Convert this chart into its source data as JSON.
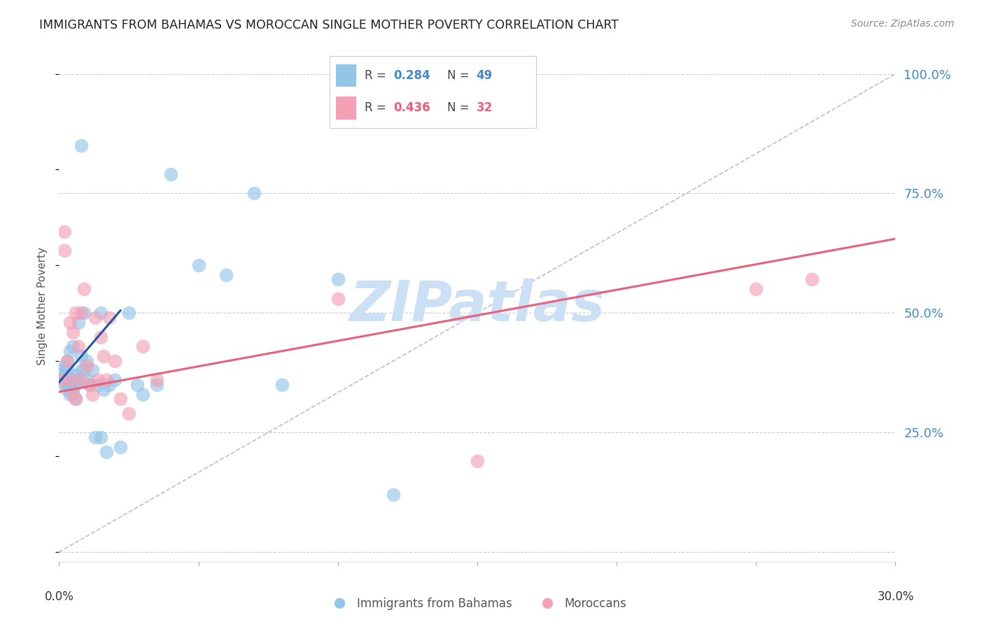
{
  "title": "IMMIGRANTS FROM BAHAMAS VS MOROCCAN SINGLE MOTHER POVERTY CORRELATION CHART",
  "source": "Source: ZipAtlas.com",
  "ylabel": "Single Mother Poverty",
  "xlim": [
    0.0,
    0.3
  ],
  "ylim": [
    -0.02,
    1.05
  ],
  "yticks": [
    0.0,
    0.25,
    0.5,
    0.75,
    1.0
  ],
  "ytick_labels": [
    "",
    "25.0%",
    "50.0%",
    "75.0%",
    "100.0%"
  ],
  "label1": "Immigrants from Bahamas",
  "label2": "Moroccans",
  "blue_color": "#92c5e8",
  "pink_color": "#f4a0b5",
  "blue_line_color": "#2255aa",
  "pink_line_color": "#e8607a",
  "axis_label_color": "#4488cc",
  "title_color": "#222222",
  "grid_color": "#cccccc",
  "watermark_color": "#cce0f5",
  "blue_x": [
    0.001,
    0.001,
    0.002,
    0.002,
    0.002,
    0.003,
    0.003,
    0.003,
    0.003,
    0.004,
    0.004,
    0.004,
    0.005,
    0.005,
    0.005,
    0.006,
    0.006,
    0.006,
    0.007,
    0.007,
    0.008,
    0.008,
    0.009,
    0.009,
    0.01,
    0.01,
    0.011,
    0.012,
    0.013,
    0.014,
    0.015,
    0.016,
    0.017,
    0.018,
    0.02,
    0.022,
    0.025,
    0.028,
    0.03,
    0.035,
    0.04,
    0.05,
    0.06,
    0.07,
    0.08,
    0.1,
    0.12,
    0.015,
    0.008
  ],
  "blue_y": [
    0.38,
    0.36,
    0.37,
    0.35,
    0.39,
    0.34,
    0.36,
    0.38,
    0.4,
    0.33,
    0.35,
    0.42,
    0.34,
    0.36,
    0.43,
    0.32,
    0.35,
    0.37,
    0.36,
    0.48,
    0.38,
    0.41,
    0.38,
    0.5,
    0.36,
    0.4,
    0.35,
    0.38,
    0.24,
    0.35,
    0.24,
    0.34,
    0.21,
    0.35,
    0.36,
    0.22,
    0.5,
    0.35,
    0.33,
    0.35,
    0.79,
    0.6,
    0.58,
    0.75,
    0.35,
    0.57,
    0.12,
    0.5,
    0.85
  ],
  "pink_x": [
    0.001,
    0.002,
    0.002,
    0.003,
    0.004,
    0.004,
    0.005,
    0.005,
    0.006,
    0.006,
    0.007,
    0.008,
    0.008,
    0.009,
    0.01,
    0.011,
    0.012,
    0.013,
    0.014,
    0.015,
    0.016,
    0.017,
    0.018,
    0.02,
    0.022,
    0.025,
    0.03,
    0.035,
    0.1,
    0.15,
    0.25,
    0.27
  ],
  "pink_y": [
    0.36,
    0.63,
    0.67,
    0.4,
    0.36,
    0.48,
    0.33,
    0.46,
    0.32,
    0.5,
    0.43,
    0.36,
    0.5,
    0.55,
    0.39,
    0.35,
    0.33,
    0.49,
    0.36,
    0.45,
    0.41,
    0.36,
    0.49,
    0.4,
    0.32,
    0.29,
    0.43,
    0.36,
    0.53,
    0.19,
    0.55,
    0.57
  ],
  "blue_trendline_x": [
    0.0,
    0.022
  ],
  "blue_trendline_y": [
    0.355,
    0.505
  ],
  "pink_trendline_x": [
    0.0,
    0.3
  ],
  "pink_trendline_y": [
    0.335,
    0.655
  ],
  "ref_line_x": [
    0.0,
    0.3
  ],
  "ref_line_y": [
    0.0,
    1.0
  ]
}
